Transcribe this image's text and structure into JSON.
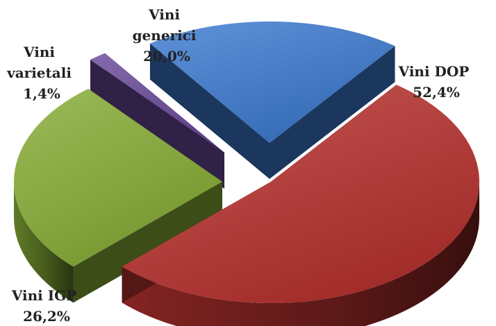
{
  "chart_data": {
    "type": "pie",
    "style": "3d-exploded",
    "legend": "none",
    "slices": [
      {
        "label_lines": [
          "Vini DOP"
        ],
        "value_text": "52,4%",
        "value": 52.4,
        "color": "#b8322f"
      },
      {
        "label_lines": [
          "Vini IGP"
        ],
        "value_text": "26,2%",
        "value": 26.2,
        "color": "#86ac35"
      },
      {
        "label_lines": [
          "Vini",
          "varietali"
        ],
        "value_text": "1,4%",
        "value": 1.4,
        "color": "#6a4a9b"
      },
      {
        "label_lines": [
          "Vini",
          "generici"
        ],
        "value_text": "20,0%",
        "value": 20.0,
        "color": "#3c7ad0"
      }
    ]
  }
}
